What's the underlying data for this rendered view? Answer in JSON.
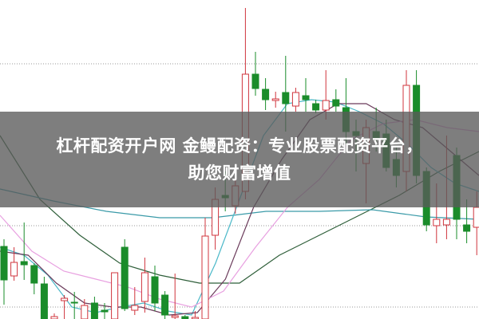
{
  "caption": {
    "line1": "杠杆配资开户网 金鳗配资：专业股票配资平台，",
    "line2": "助您财富增值"
  },
  "chart_data": {
    "type": "candlestick",
    "title": "",
    "xlabel": "",
    "ylabel": "",
    "ylim": [
      0,
      40
    ],
    "grid": "dotted horizontal",
    "up_color": "#d0343c",
    "down_color": "#1a8c2a",
    "candles_ohlc": [
      [
        9.1,
        10.0,
        1.8,
        4.9
      ],
      [
        5.4,
        9.0,
        4.8,
        7.1
      ],
      [
        7.2,
        12.1,
        4.9,
        6.8
      ],
      [
        6.7,
        7.0,
        3.1,
        4.5
      ],
      [
        4.4,
        5.3,
        0,
        0
      ],
      [
        0,
        0.7,
        0,
        0.3
      ],
      [
        2.3,
        3.0,
        0,
        2.6
      ],
      [
        2.1,
        3.4,
        0,
        2.0
      ],
      [
        0,
        2.5,
        0,
        1.7
      ],
      [
        2.0,
        2.8,
        0,
        0
      ],
      [
        1.1,
        2.0,
        0,
        0.9
      ],
      [
        0,
        5.8,
        0,
        5.8
      ],
      [
        9.0,
        10.0,
        1.0,
        1.3
      ],
      [
        1.1,
        4.0,
        0.5,
        1.7
      ],
      [
        2.2,
        7.7,
        0.8,
        5.8
      ],
      [
        5.3,
        6.7,
        1.0,
        2.0
      ],
      [
        3.0,
        3.5,
        0,
        0.5
      ],
      [
        0.2,
        5.7,
        0,
        0.4
      ],
      [
        0.3,
        0.5,
        0,
        0
      ],
      [
        0,
        1.0,
        0,
        0.2
      ],
      [
        0,
        12.7,
        0,
        10.4
      ],
      [
        10.5,
        16.5,
        8.7,
        15.0
      ],
      [
        15.5,
        18.5,
        13.5,
        15.2
      ],
      [
        14.2,
        17.5,
        13.2,
        16.7
      ],
      [
        16.0,
        39.0,
        15.0,
        30.7
      ],
      [
        30.7,
        33.5,
        28.0,
        28.9
      ],
      [
        28.8,
        30.2,
        26.2,
        27.5
      ],
      [
        27.4,
        28.5,
        26.5,
        27.6
      ],
      [
        28.4,
        33.0,
        23.5,
        27.0
      ],
      [
        26.7,
        29.0,
        26.0,
        28.4
      ],
      [
        28.0,
        30.2,
        26.0,
        27.5
      ],
      [
        27.0,
        27.5,
        25.8,
        26.2
      ],
      [
        26.2,
        31.2,
        25.0,
        27.4
      ],
      [
        27.5,
        28.8,
        26.0,
        26.7
      ],
      [
        26.5,
        30.2,
        22.0,
        23.5
      ],
      [
        23.5,
        25.0,
        18.5,
        23.0
      ],
      [
        19.5,
        25.0,
        14.5,
        24.0
      ],
      [
        23.5,
        26.5,
        21.0,
        22.5
      ],
      [
        23.2,
        25.0,
        18.5,
        19.0
      ],
      [
        20.0,
        21.5,
        16.5,
        18.0
      ],
      [
        18.5,
        31.2,
        16.0,
        29.3
      ],
      [
        29.3,
        31.2,
        17.0,
        18.0
      ],
      [
        18.5,
        19.0,
        11.0,
        11.8
      ],
      [
        11.7,
        17.0,
        9.5,
        12.5
      ],
      [
        11.8,
        23.0,
        10.0,
        12.5
      ],
      [
        20.5,
        21.5,
        10.0,
        12.5
      ],
      [
        11.8,
        15.0,
        9.5,
        11.0
      ],
      [
        11.5,
        16.0,
        8.0,
        14.0
      ]
    ],
    "moving_averages": [
      {
        "color": "#2f5f3a",
        "values": [
          23,
          15,
          10.5,
          7,
          5.5,
          4.5,
          4.5,
          8,
          10.5,
          13,
          15.5,
          18.5,
          21
        ]
      },
      {
        "color": "#3a9aa8",
        "values": [
          16.3,
          14.8,
          13.5,
          12.7,
          12.7,
          13.5,
          13.5,
          13.7,
          12.8,
          12.5
        ]
      },
      {
        "color": "#4ab8c8",
        "values": [
          9,
          8,
          5.5,
          1.5,
          0.8,
          1.5,
          2,
          1,
          0.5,
          7,
          15,
          23,
          27,
          27.5,
          27.2,
          26,
          24.5,
          22,
          19,
          17,
          16
        ]
      },
      {
        "color": "#6a3a5a",
        "values": [
          8.5,
          8,
          4.5,
          2,
          1.5,
          1.5,
          0.5,
          0.8,
          5,
          14,
          20,
          25,
          27,
          27,
          25,
          24,
          21,
          18
        ]
      },
      {
        "color": "#e8a0e0",
        "values": [
          13,
          8.5,
          6,
          5,
          4,
          2.5,
          1.5,
          3.5,
          9,
          14,
          17.5,
          22.5,
          24.5,
          25,
          24,
          23.5
        ]
      }
    ]
  }
}
